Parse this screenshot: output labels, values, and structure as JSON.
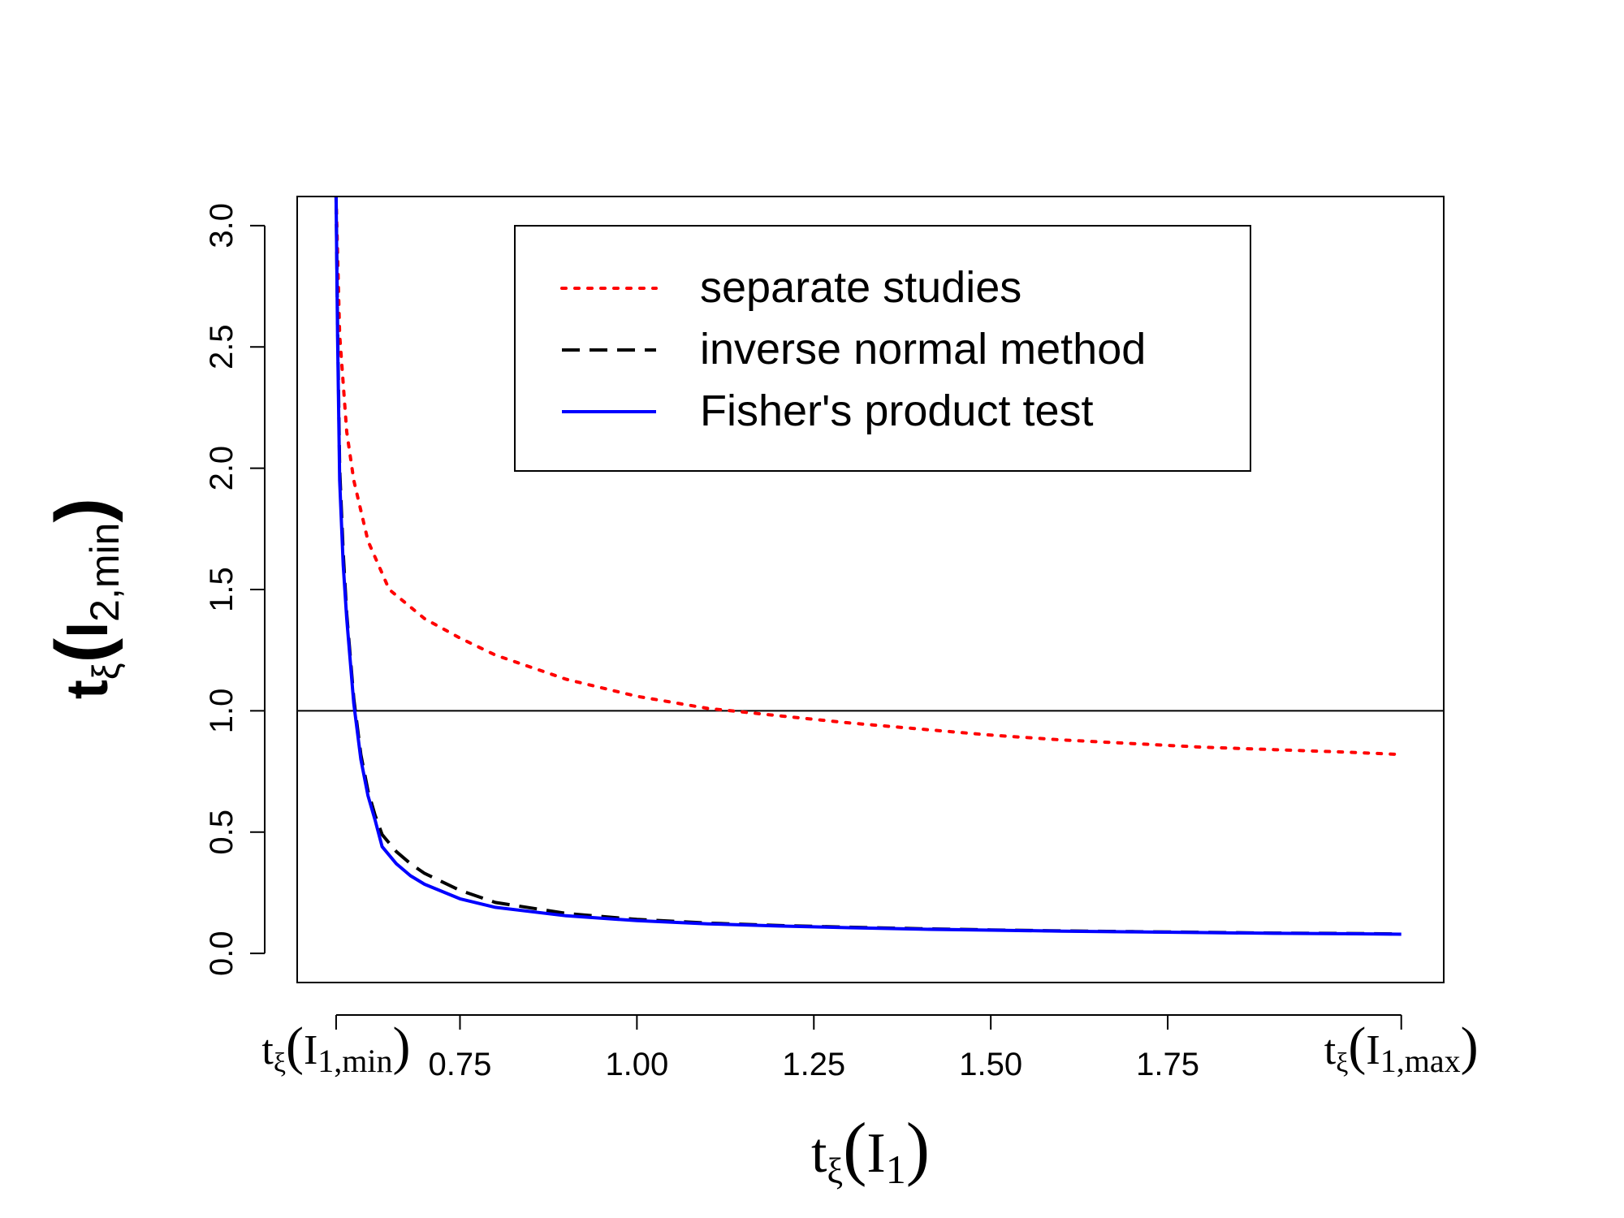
{
  "chart_data": {
    "type": "line",
    "title": "",
    "xlabel": {
      "base": "t",
      "sub": "ξ",
      "open": "(",
      "var": "I",
      "index": "1",
      "close": ")"
    },
    "ylabel": {
      "base": "t",
      "sub": "ξ",
      "open": "(",
      "var": "I",
      "index": "2,min",
      "close": ")"
    },
    "xlim": [
      0.52,
      2.14
    ],
    "ylim": [
      -0.12,
      3.12
    ],
    "x_ticks": [
      0.575,
      0.75,
      1.0,
      1.25,
      1.5,
      1.75,
      2.08
    ],
    "x_tick_labels": [
      "0.75",
      "1.00",
      "1.25",
      "1.50",
      "1.75"
    ],
    "x_tick_label_values": [
      0.75,
      1.0,
      1.25,
      1.5,
      1.75
    ],
    "x_special_labels": [
      {
        "x": 0.575,
        "base": "t",
        "sub": "ξ",
        "open": "(",
        "var": "I",
        "index": "1,min",
        "close": ")"
      },
      {
        "x": 2.08,
        "base": "t",
        "sub": "ξ",
        "open": "(",
        "var": "I",
        "index": "1,max",
        "close": ")"
      }
    ],
    "y_ticks": [
      0.0,
      0.5,
      1.0,
      1.5,
      2.0,
      2.5,
      3.0
    ],
    "y_tick_labels": [
      "0.0",
      "0.5",
      "1.0",
      "1.5",
      "2.0",
      "2.5",
      "3.0"
    ],
    "reference_line": {
      "y": 1.0,
      "color": "#000000"
    },
    "legend": {
      "position": "top-right",
      "entries": [
        {
          "label": "separate studies",
          "color": "#ff0000",
          "style": "dotted"
        },
        {
          "label": "inverse normal method",
          "color": "#000000",
          "style": "dashed"
        },
        {
          "label": "Fisher's product test",
          "color": "#0000ff",
          "style": "solid"
        }
      ]
    },
    "series": [
      {
        "name": "separate studies",
        "color": "#ff0000",
        "style": "dotted",
        "x": [
          0.575,
          0.58,
          0.59,
          0.6,
          0.62,
          0.65,
          0.7,
          0.75,
          0.8,
          0.9,
          1.0,
          1.1,
          1.2,
          1.3,
          1.4,
          1.5,
          1.6,
          1.7,
          1.8,
          1.9,
          2.0,
          2.08
        ],
        "y": [
          3.12,
          2.55,
          2.15,
          1.95,
          1.7,
          1.5,
          1.38,
          1.3,
          1.23,
          1.13,
          1.06,
          1.01,
          0.98,
          0.95,
          0.925,
          0.9,
          0.88,
          0.865,
          0.85,
          0.84,
          0.83,
          0.82
        ]
      },
      {
        "name": "inverse normal method",
        "color": "#000000",
        "style": "dashed",
        "x": [
          0.575,
          0.577,
          0.58,
          0.585,
          0.59,
          0.6,
          0.61,
          0.62,
          0.63,
          0.64,
          0.66,
          0.68,
          0.7,
          0.75,
          0.8,
          0.9,
          1.0,
          1.1,
          1.2,
          1.3,
          1.4,
          1.5,
          1.6,
          1.7,
          1.8,
          1.9,
          2.0,
          2.08
        ],
        "y": [
          3.12,
          2.6,
          2.0,
          1.65,
          1.4,
          1.05,
          0.82,
          0.67,
          0.57,
          0.49,
          0.42,
          0.37,
          0.33,
          0.26,
          0.21,
          0.165,
          0.14,
          0.125,
          0.115,
          0.108,
          0.102,
          0.097,
          0.093,
          0.09,
          0.087,
          0.084,
          0.082,
          0.08
        ]
      },
      {
        "name": "Fisher's product test",
        "color": "#0000ff",
        "style": "solid",
        "x": [
          0.575,
          0.577,
          0.58,
          0.585,
          0.59,
          0.6,
          0.61,
          0.62,
          0.63,
          0.64,
          0.66,
          0.68,
          0.7,
          0.75,
          0.8,
          0.9,
          1.0,
          1.1,
          1.2,
          1.3,
          1.4,
          1.5,
          1.6,
          1.7,
          1.8,
          1.9,
          2.0,
          2.08
        ],
        "y": [
          3.12,
          2.55,
          1.95,
          1.6,
          1.38,
          1.03,
          0.8,
          0.65,
          0.55,
          0.44,
          0.37,
          0.32,
          0.285,
          0.225,
          0.19,
          0.155,
          0.135,
          0.122,
          0.113,
          0.106,
          0.1,
          0.096,
          0.092,
          0.089,
          0.086,
          0.083,
          0.081,
          0.079
        ]
      }
    ]
  }
}
